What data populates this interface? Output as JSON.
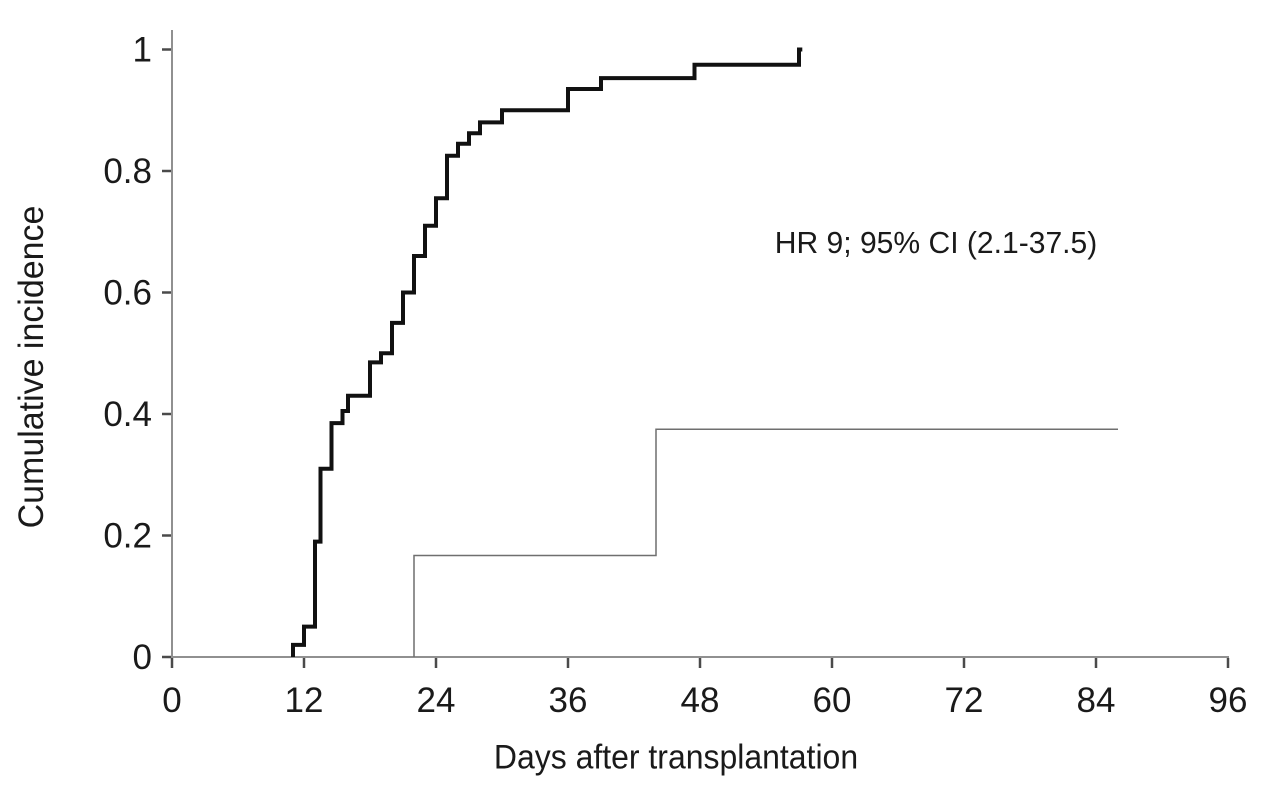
{
  "figure": {
    "background_color": "#ffffff",
    "text_color": "#1a1a1a",
    "axis_line_color": "#909090",
    "tick_mark_color": "#4a4a4a"
  },
  "chart_data": {
    "type": "line",
    "subtype": "step-function-cumulative-incidence",
    "title": "",
    "xlabel": "Days after transplantation",
    "ylabel": "Cumulative incidence",
    "annotation": "HR 9; 95% CI (2.1-37.5)",
    "xlim": [
      0,
      96
    ],
    "ylim": [
      0,
      1
    ],
    "grid": false,
    "legend": "none",
    "x_ticks": [
      0,
      12,
      24,
      36,
      48,
      60,
      72,
      84,
      96
    ],
    "x_tick_labels": [
      "0",
      "12",
      "24",
      "36",
      "48",
      "60",
      "72",
      "84",
      "96"
    ],
    "y_ticks": [
      0,
      0.2,
      0.4,
      0.6,
      0.8,
      1
    ],
    "y_tick_labels": [
      "0",
      "0.2",
      "0.4",
      "0.6",
      "0.8",
      "1"
    ],
    "series": [
      {
        "name": "thick-black-group",
        "color": "#111111",
        "line_width": 4,
        "start_day": 11,
        "end_day": 57.3,
        "steps": [
          [
            11,
            0.02
          ],
          [
            12,
            0.05
          ],
          [
            13,
            0.19
          ],
          [
            13.5,
            0.31
          ],
          [
            14.5,
            0.385
          ],
          [
            15.5,
            0.405
          ],
          [
            16,
            0.43
          ],
          [
            18,
            0.485
          ],
          [
            19,
            0.5
          ],
          [
            20,
            0.55
          ],
          [
            21,
            0.6
          ],
          [
            22,
            0.66
          ],
          [
            23,
            0.71
          ],
          [
            24,
            0.755
          ],
          [
            25,
            0.825
          ],
          [
            26,
            0.845
          ],
          [
            27,
            0.862
          ],
          [
            28,
            0.88
          ],
          [
            30,
            0.9
          ],
          [
            36,
            0.935
          ],
          [
            39,
            0.953
          ],
          [
            47.5,
            0.975
          ],
          [
            57,
            1.0
          ]
        ]
      },
      {
        "name": "thin-gray-group",
        "color": "#6f6f6f",
        "line_width": 1.5,
        "start_day": 22,
        "end_day": 86,
        "steps": [
          [
            22,
            0.167
          ],
          [
            44,
            0.375
          ]
        ]
      }
    ]
  }
}
